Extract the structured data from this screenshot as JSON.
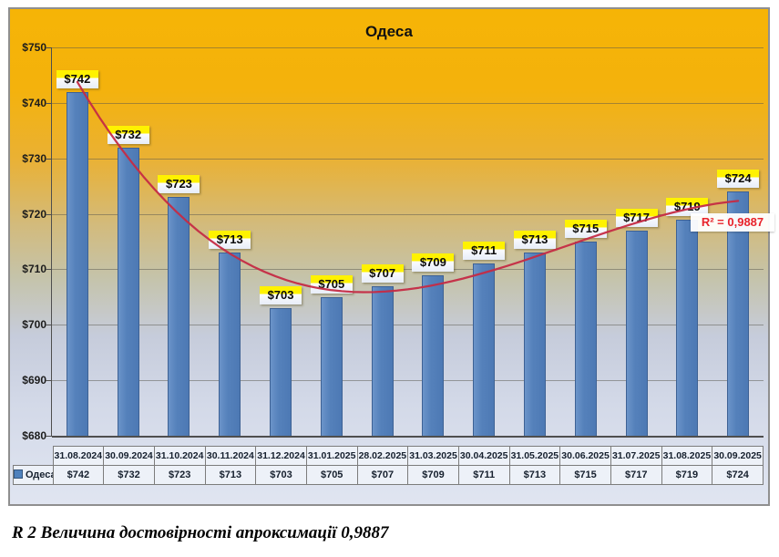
{
  "figure": {
    "caption": "R 2 Величина достовірності апроксимації 0,9887"
  },
  "chart_data": {
    "type": "bar",
    "title": "Одеса",
    "series_name": "Одеса",
    "categories": [
      "31.08.2024",
      "30.09.2024",
      "31.10.2024",
      "30.11.2024",
      "31.12.2024",
      "31.01.2025",
      "28.02.2025",
      "31.03.2025",
      "30.04.2025",
      "31.05.2025",
      "30.06.2025",
      "31.07.2025",
      "31.08.2025",
      "30.09.2025"
    ],
    "values": [
      742,
      732,
      723,
      713,
      703,
      705,
      707,
      709,
      711,
      713,
      715,
      717,
      719,
      724
    ],
    "value_labels": [
      "$742",
      "$732",
      "$723",
      "$713",
      "$703",
      "$705",
      "$707",
      "$709",
      "$711",
      "$713",
      "$715",
      "$717",
      "$719",
      "$724"
    ],
    "ylim": [
      680,
      750
    ],
    "ytick_step": 10,
    "ytick_labels": [
      "$750",
      "$740",
      "$730",
      "$720",
      "$710",
      "$700",
      "$690",
      "$680"
    ],
    "grid": true,
    "legend_position": "bottom-table",
    "trendline": {
      "type": "polynomial",
      "degree": 3,
      "label": "R² = 0,9887",
      "r_squared": 0.9887,
      "color": "#C52B44"
    },
    "colors": {
      "bar_fill": "#5581BB",
      "bar_border": "#3D6194",
      "label_highlight": "#FFF200",
      "background_top": "#F6B406",
      "background_bottom": "#E0E5F1",
      "legend_marker": "#4F81BD"
    }
  }
}
